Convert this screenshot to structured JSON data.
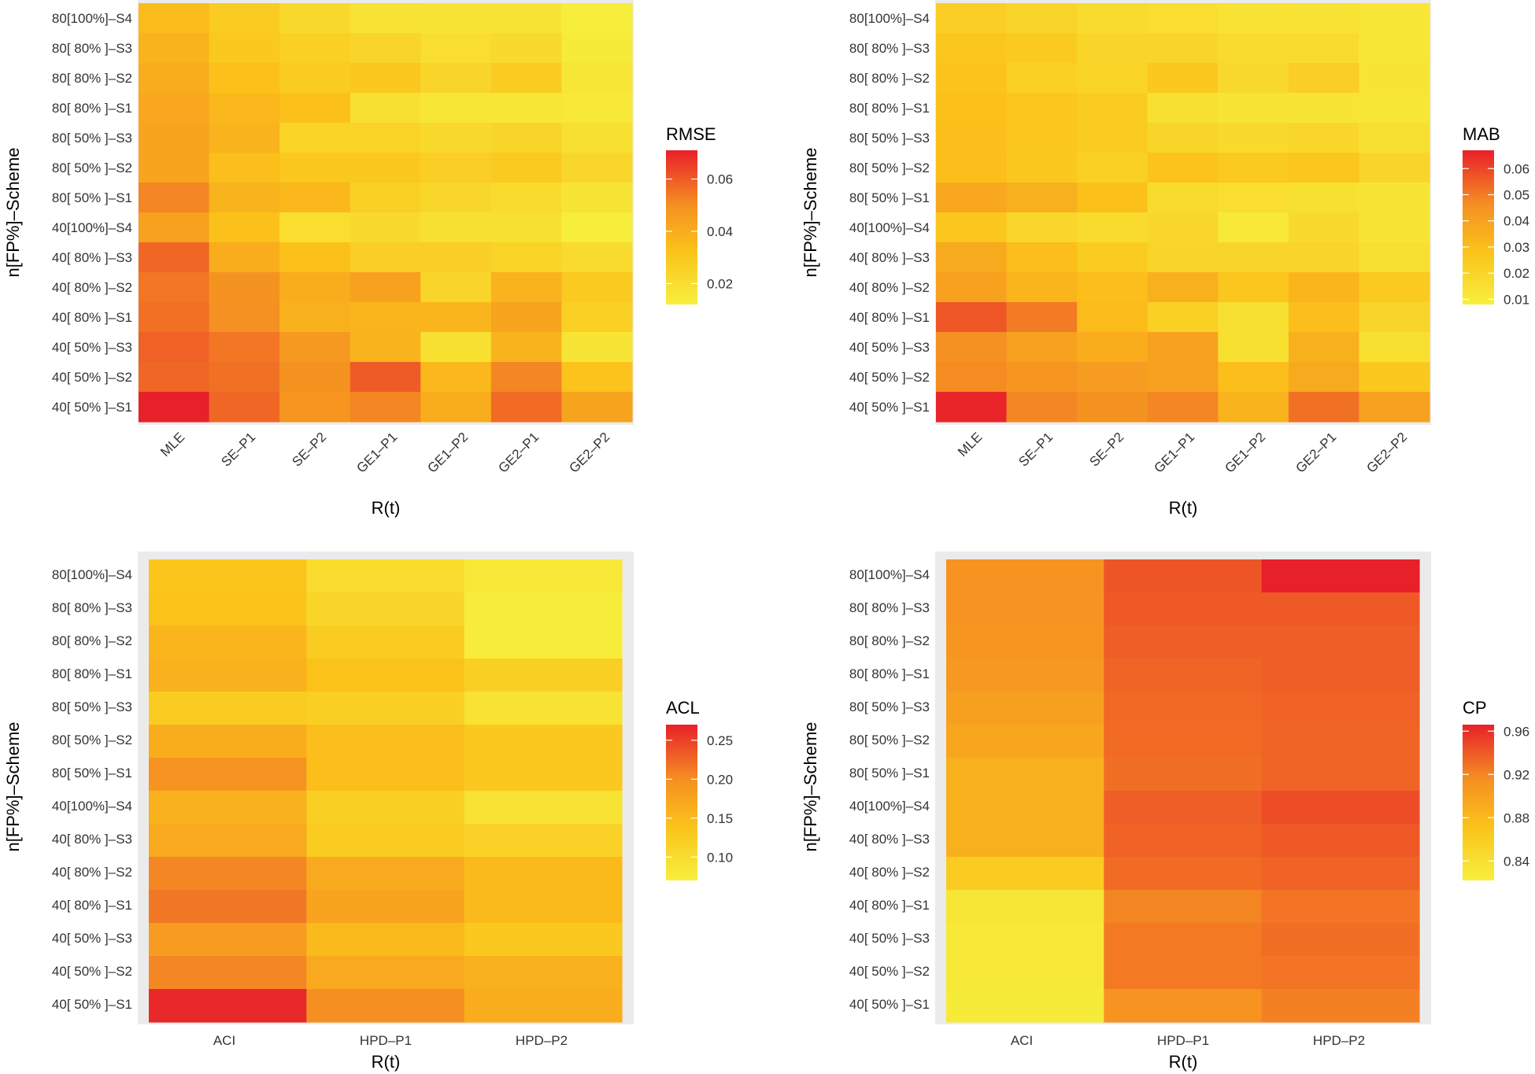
{
  "chart_data": [
    {
      "type": "heatmap",
      "title": "",
      "xlabel": "R(t)",
      "ylabel": "n[FP%]–Scheme",
      "x": [
        "MLE",
        "SE–P1",
        "SE–P2",
        "GE1–P1",
        "GE1–P2",
        "GE2–P1",
        "GE2–P2"
      ],
      "y": [
        "80[100%]–S4",
        "80[ 80% ]–S3",
        "80[ 80% ]–S2",
        "80[ 80% ]–S1",
        "80[ 50% ]–S3",
        "80[ 50% ]–S2",
        "80[ 50% ]–S1",
        "40[100%]–S4",
        "40[ 80% ]–S3",
        "40[ 80% ]–S2",
        "40[ 80% ]–S1",
        "40[ 50% ]–S3",
        "40[ 50% ]–S2",
        "40[ 50% ]–S1"
      ],
      "values": [
        [
          0.035,
          0.028,
          0.022,
          0.018,
          0.017,
          0.017,
          0.013
        ],
        [
          0.038,
          0.03,
          0.026,
          0.024,
          0.02,
          0.022,
          0.014
        ],
        [
          0.04,
          0.033,
          0.028,
          0.03,
          0.024,
          0.028,
          0.016
        ],
        [
          0.042,
          0.036,
          0.033,
          0.019,
          0.016,
          0.016,
          0.015
        ],
        [
          0.043,
          0.038,
          0.025,
          0.025,
          0.022,
          0.024,
          0.019
        ],
        [
          0.043,
          0.034,
          0.03,
          0.03,
          0.027,
          0.029,
          0.023
        ],
        [
          0.052,
          0.038,
          0.036,
          0.026,
          0.023,
          0.021,
          0.017
        ],
        [
          0.044,
          0.033,
          0.02,
          0.022,
          0.019,
          0.019,
          0.013
        ],
        [
          0.058,
          0.04,
          0.033,
          0.027,
          0.027,
          0.025,
          0.021
        ],
        [
          0.055,
          0.049,
          0.04,
          0.044,
          0.024,
          0.038,
          0.029
        ],
        [
          0.056,
          0.05,
          0.039,
          0.037,
          0.037,
          0.043,
          0.026
        ],
        [
          0.059,
          0.055,
          0.047,
          0.038,
          0.019,
          0.038,
          0.017
        ],
        [
          0.058,
          0.056,
          0.049,
          0.06,
          0.036,
          0.052,
          0.032
        ],
        [
          0.071,
          0.058,
          0.048,
          0.052,
          0.04,
          0.057,
          0.043
        ]
      ],
      "legend": {
        "title": "RMSE",
        "min": 0.012,
        "max": 0.071,
        "ticks": [
          0.02,
          0.04,
          0.06
        ],
        "tick_labels": [
          "0.02",
          "0.04",
          "0.06"
        ]
      }
    },
    {
      "type": "heatmap",
      "title": "",
      "xlabel": "R(t)",
      "ylabel": "n[FP%]–Scheme",
      "x": [
        "MLE",
        "SE–P1",
        "SE–P2",
        "GE1–P1",
        "GE1–P2",
        "GE2–P1",
        "GE2–P2"
      ],
      "y": [
        "80[100%]–S4",
        "80[ 80% ]–S3",
        "80[ 80% ]–S2",
        "80[ 80% ]–S1",
        "80[ 50% ]–S3",
        "80[ 50% ]–S2",
        "80[ 50% ]–S1",
        "40[100%]–S4",
        "40[ 80% ]–S3",
        "40[ 80% ]–S2",
        "40[ 80% ]–S1",
        "40[ 50% ]–S3",
        "40[ 50% ]–S2",
        "40[ 50% ]–S1"
      ],
      "values": [
        [
          0.023,
          0.02,
          0.017,
          0.016,
          0.014,
          0.014,
          0.012
        ],
        [
          0.027,
          0.025,
          0.02,
          0.02,
          0.017,
          0.017,
          0.012
        ],
        [
          0.028,
          0.022,
          0.021,
          0.026,
          0.018,
          0.023,
          0.013
        ],
        [
          0.029,
          0.027,
          0.024,
          0.015,
          0.013,
          0.013,
          0.012
        ],
        [
          0.03,
          0.027,
          0.024,
          0.02,
          0.018,
          0.019,
          0.015
        ],
        [
          0.03,
          0.026,
          0.022,
          0.028,
          0.025,
          0.027,
          0.02
        ],
        [
          0.038,
          0.035,
          0.029,
          0.017,
          0.016,
          0.015,
          0.013
        ],
        [
          0.027,
          0.019,
          0.017,
          0.019,
          0.011,
          0.018,
          0.013
        ],
        [
          0.037,
          0.03,
          0.024,
          0.02,
          0.02,
          0.02,
          0.015
        ],
        [
          0.04,
          0.033,
          0.03,
          0.035,
          0.027,
          0.033,
          0.025
        ],
        [
          0.057,
          0.05,
          0.031,
          0.022,
          0.015,
          0.03,
          0.02
        ],
        [
          0.046,
          0.04,
          0.036,
          0.04,
          0.015,
          0.035,
          0.015
        ],
        [
          0.047,
          0.044,
          0.042,
          0.04,
          0.03,
          0.037,
          0.026
        ],
        [
          0.066,
          0.048,
          0.045,
          0.048,
          0.034,
          0.052,
          0.04
        ]
      ],
      "legend": {
        "title": "MAB",
        "min": 0.008,
        "max": 0.067,
        "ticks": [
          0.01,
          0.02,
          0.03,
          0.04,
          0.05,
          0.06
        ],
        "tick_labels": [
          "0.01",
          "0.02",
          "0.03",
          "0.04",
          "0.05",
          "0.06"
        ]
      }
    },
    {
      "type": "heatmap",
      "title": "",
      "xlabel": "R(t)",
      "ylabel": "n[FP%]–Scheme",
      "x": [
        "ACI",
        "HPD–P1",
        "HPD–P2"
      ],
      "y": [
        "80[100%]–S4",
        "80[ 80% ]–S3",
        "80[ 80% ]–S2",
        "80[ 80% ]–S1",
        "80[ 50% ]–S3",
        "80[ 50% ]–S2",
        "80[ 50% ]–S1",
        "40[100%]–S4",
        "40[ 80% ]–S3",
        "40[ 80% ]–S2",
        "40[ 80% ]–S1",
        "40[ 50% ]–S3",
        "40[ 50% ]–S2",
        "40[ 50% ]–S1"
      ],
      "values": [
        [
          0.135,
          0.1,
          0.08
        ],
        [
          0.14,
          0.11,
          0.075
        ],
        [
          0.155,
          0.125,
          0.075
        ],
        [
          0.16,
          0.14,
          0.12
        ],
        [
          0.125,
          0.12,
          0.09
        ],
        [
          0.165,
          0.145,
          0.13
        ],
        [
          0.195,
          0.145,
          0.13
        ],
        [
          0.16,
          0.12,
          0.09
        ],
        [
          0.17,
          0.125,
          0.115
        ],
        [
          0.205,
          0.17,
          0.15
        ],
        [
          0.215,
          0.175,
          0.15
        ],
        [
          0.185,
          0.15,
          0.13
        ],
        [
          0.205,
          0.17,
          0.16
        ],
        [
          0.265,
          0.2,
          0.165
        ]
      ],
      "legend": {
        "title": "ACL",
        "min": 0.07,
        "max": 0.27,
        "ticks": [
          0.1,
          0.15,
          0.2,
          0.25
        ],
        "tick_labels": [
          "0.10",
          "0.15",
          "0.20",
          "0.25"
        ]
      }
    },
    {
      "type": "heatmap",
      "title": "",
      "xlabel": "R(t)",
      "ylabel": "n[FP%]–Scheme",
      "x": [
        "ACI",
        "HPD–P1",
        "HPD–P2"
      ],
      "y": [
        "80[100%]–S4",
        "80[ 80% ]–S3",
        "80[ 80% ]–S2",
        "80[ 80% ]–S1",
        "80[ 50% ]–S3",
        "80[ 50% ]–S2",
        "80[ 50% ]–S1",
        "40[100%]–S4",
        "40[ 80% ]–S3",
        "40[ 80% ]–S2",
        "40[ 80% ]–S1",
        "40[ 50% ]–S3",
        "40[ 50% ]–S2",
        "40[ 50% ]–S1"
      ],
      "values": [
        [
          0.912,
          0.942,
          0.966
        ],
        [
          0.912,
          0.94,
          0.94
        ],
        [
          0.91,
          0.938,
          0.938
        ],
        [
          0.908,
          0.935,
          0.938
        ],
        [
          0.902,
          0.933,
          0.936
        ],
        [
          0.896,
          0.932,
          0.935
        ],
        [
          0.888,
          0.93,
          0.935
        ],
        [
          0.888,
          0.938,
          0.946
        ],
        [
          0.888,
          0.936,
          0.94
        ],
        [
          0.862,
          0.932,
          0.936
        ],
        [
          0.832,
          0.92,
          0.928
        ],
        [
          0.83,
          0.925,
          0.93
        ],
        [
          0.83,
          0.925,
          0.928
        ],
        [
          0.826,
          0.912,
          0.922
        ]
      ],
      "legend": {
        "title": "CP",
        "min": 0.822,
        "max": 0.966,
        "ticks": [
          0.84,
          0.88,
          0.92,
          0.96
        ],
        "tick_labels": [
          "0.84",
          "0.88",
          "0.92",
          "0.96"
        ]
      }
    }
  ]
}
